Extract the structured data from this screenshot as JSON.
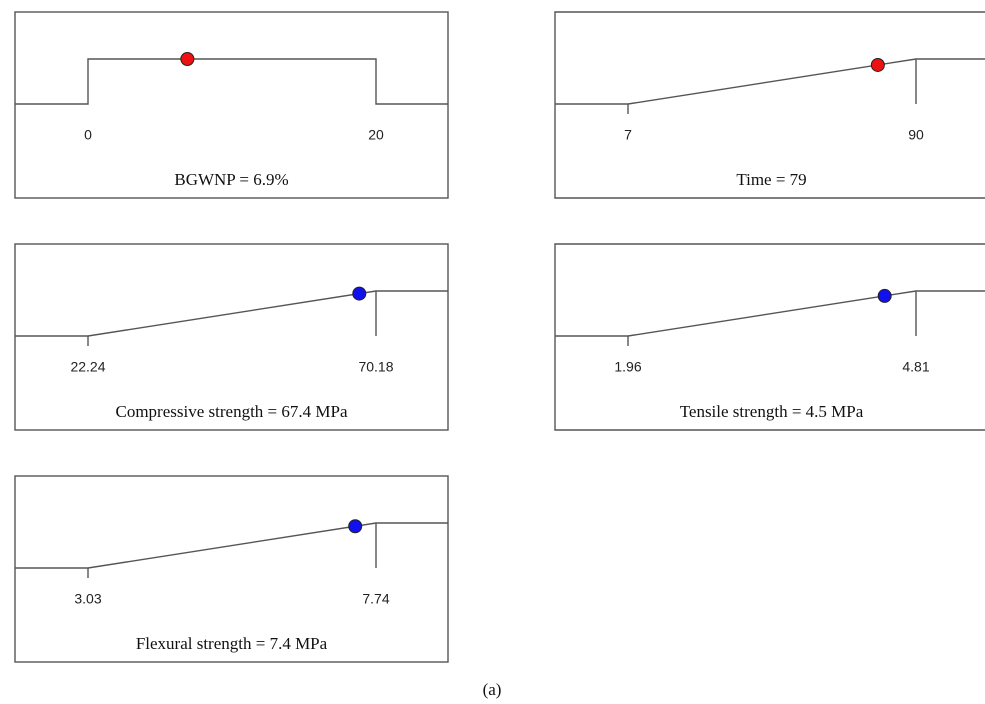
{
  "chart_data": [
    {
      "type": "range",
      "label": "BGWNP = 6.9%",
      "low": 0,
      "high": 20,
      "value": 6.9,
      "color": "#ee1111"
    },
    {
      "type": "maximize",
      "label": "Time = 79",
      "low": 7,
      "high": 90,
      "value": 79,
      "color": "#ee1111"
    },
    {
      "type": "maximize",
      "label": "Compressive strength = 67.4 MPa",
      "low": 22.24,
      "high": 70.18,
      "value": 67.4,
      "color": "#1111ee"
    },
    {
      "type": "maximize",
      "label": "Tensile strength = 4.5 MPa",
      "low": 1.96,
      "high": 4.81,
      "value": 4.5,
      "color": "#1111ee"
    },
    {
      "type": "maximize",
      "label": "Flexural strength = 7.4 MPa",
      "low": 3.03,
      "high": 7.74,
      "value": 7.4,
      "color": "#1111ee"
    }
  ],
  "caption": "(a)"
}
